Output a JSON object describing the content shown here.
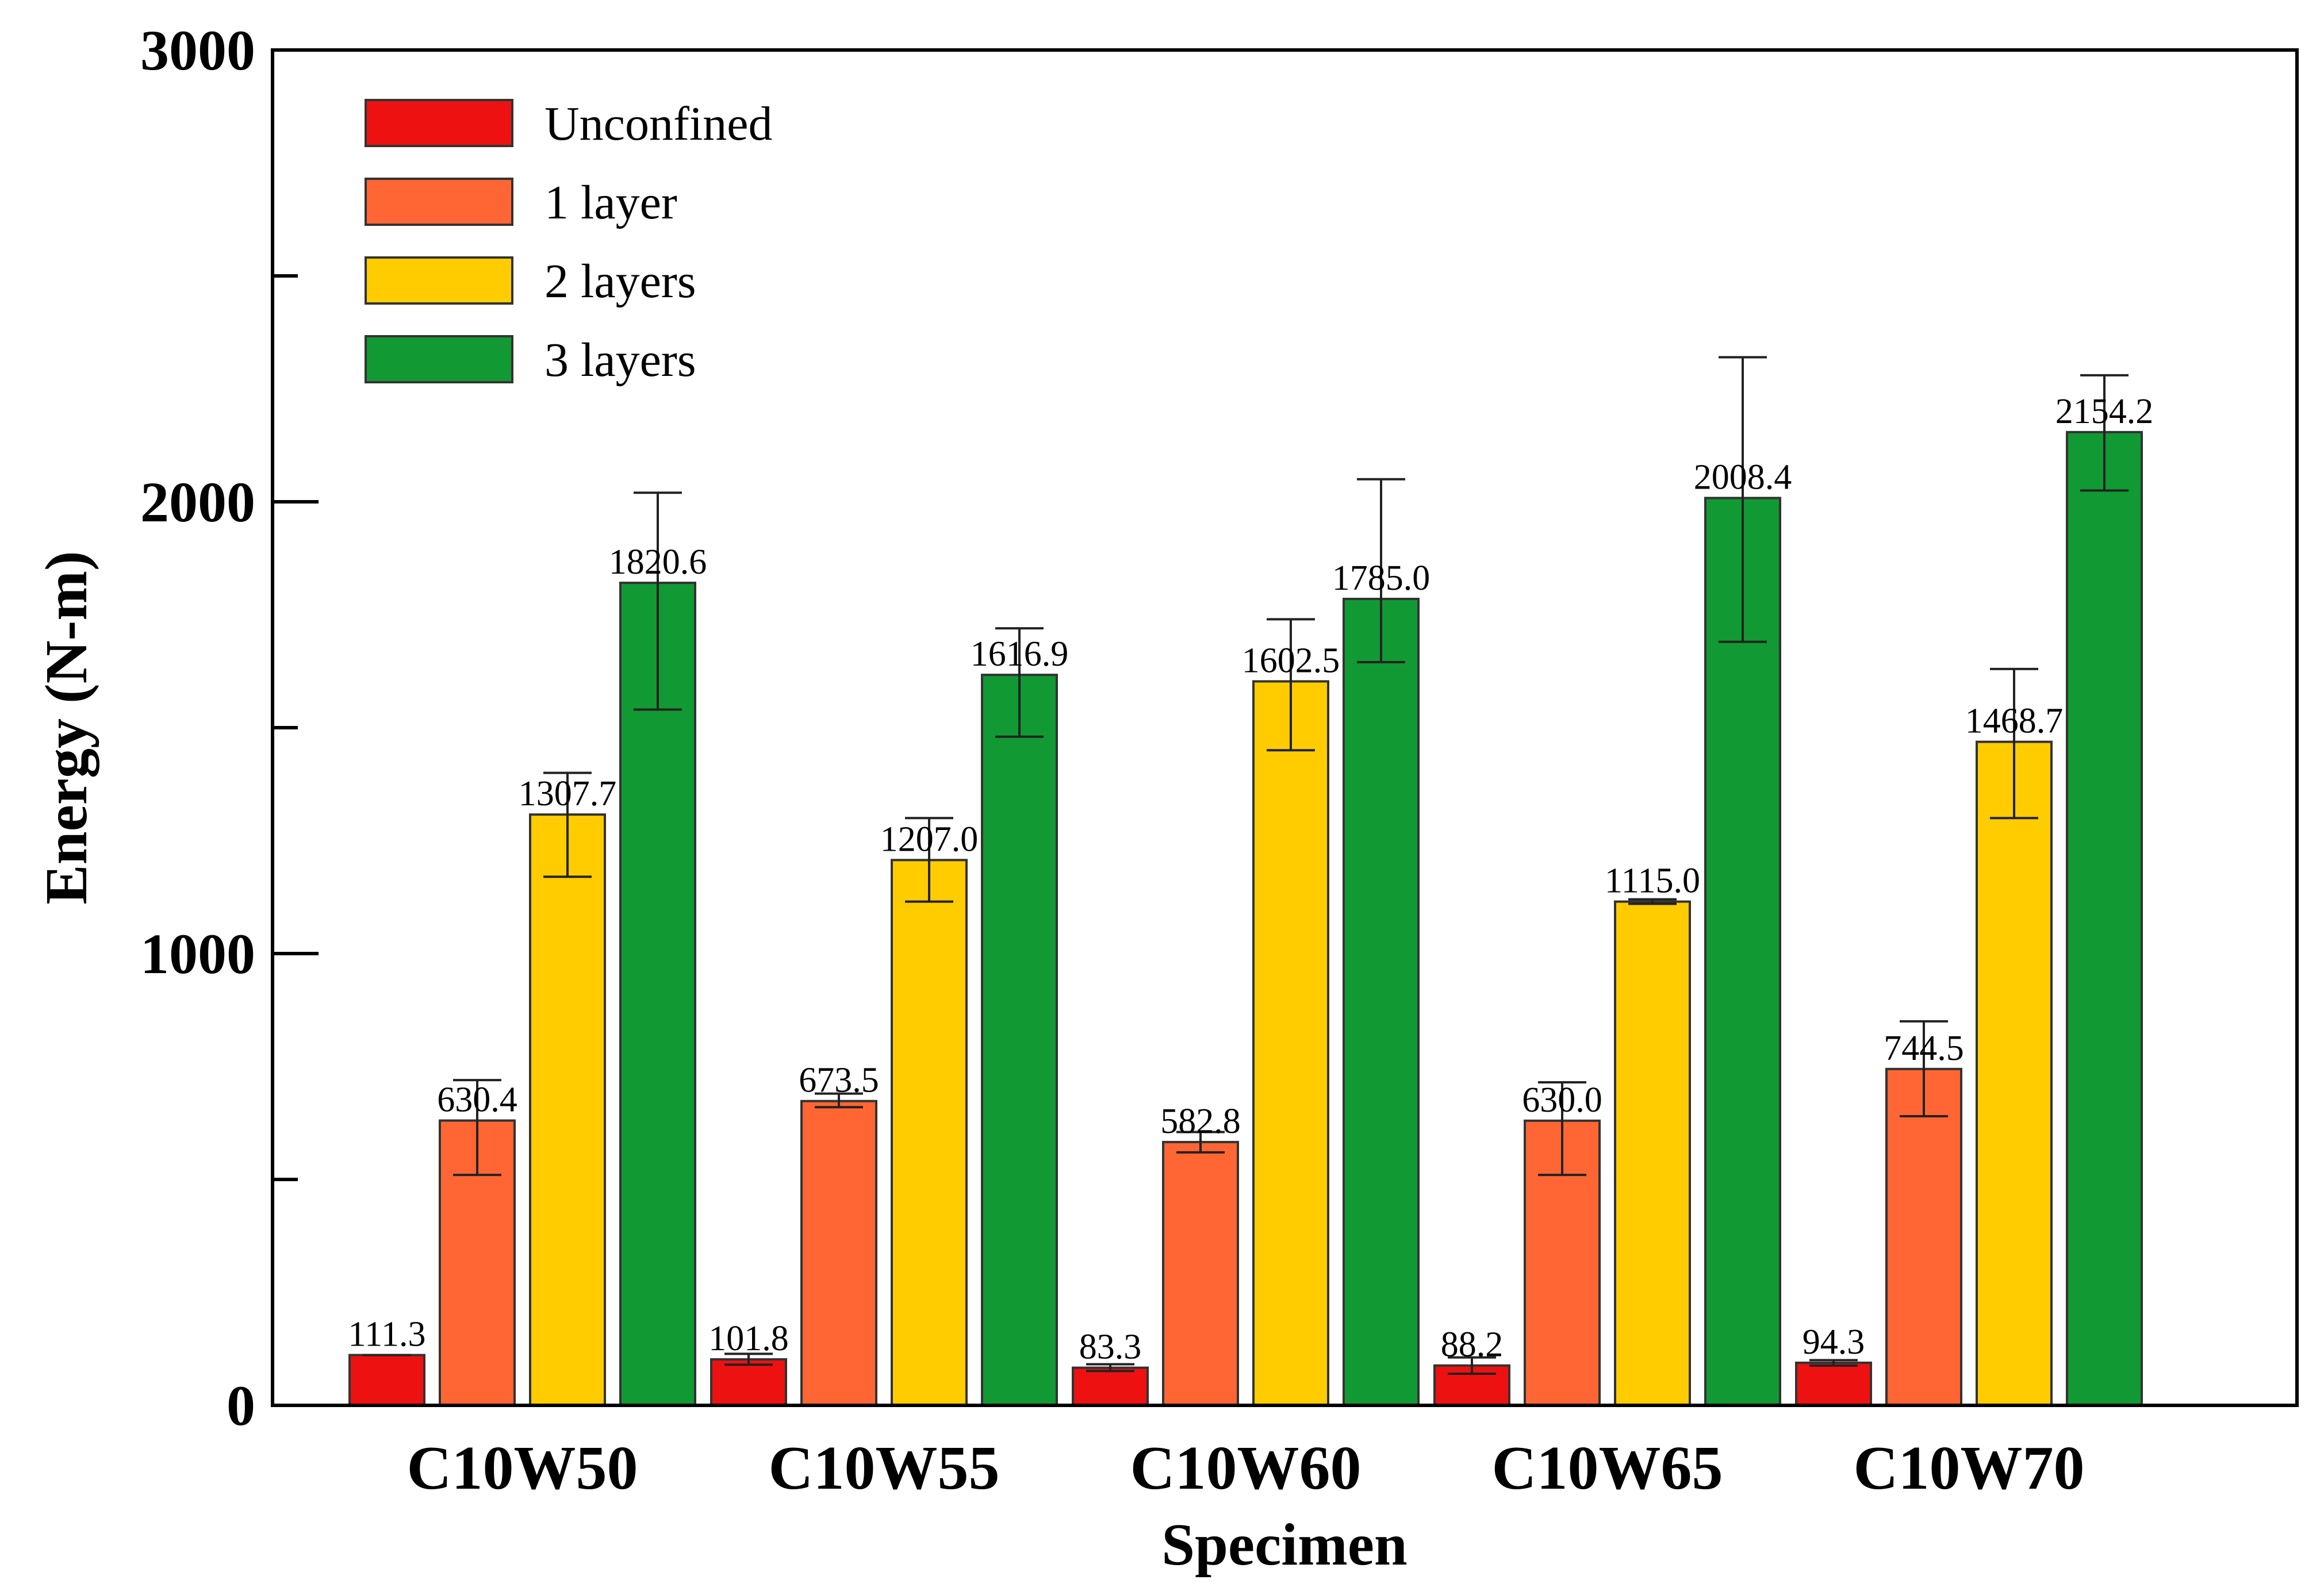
{
  "chart_data": {
    "type": "bar",
    "title": "",
    "xlabel": "Specimen",
    "ylabel": "Energy (N-m)",
    "ylim": [
      0,
      3000
    ],
    "yticks": [
      0,
      1000,
      2000,
      3000
    ],
    "ytick_labels": [
      "0",
      "1000",
      "2000",
      "3000"
    ],
    "yminor_ticks": [
      500,
      1500,
      2500
    ],
    "categories": [
      "C10W50",
      "C10W55",
      "C10W60",
      "C10W65",
      "C10W70"
    ],
    "legend_position": "top-left",
    "series": [
      {
        "name": "Unconfined",
        "color": "#ee1111",
        "values": [
          111.3,
          101.8,
          83.3,
          88.2,
          94.3
        ],
        "labels": [
          "111.3",
          "101.8",
          "83.3",
          "88.2",
          "94.3"
        ],
        "err_low": [
          111.3,
          90,
          76,
          70,
          88
        ],
        "err_high": [
          111.3,
          114,
          91,
          106,
          100
        ]
      },
      {
        "name": "1 layer",
        "color": "#ff6633",
        "values": [
          630.4,
          673.5,
          582.8,
          630.0,
          744.5
        ],
        "labels": [
          "630.4",
          "673.5",
          "582.8",
          "630.0",
          "744.5"
        ],
        "err_low": [
          510,
          660,
          560,
          510,
          640
        ],
        "err_high": [
          720,
          690,
          605,
          715,
          850
        ]
      },
      {
        "name": "2 layers",
        "color": "#ffcc00",
        "values": [
          1307.7,
          1207.0,
          1602.5,
          1115.0,
          1468.7
        ],
        "labels": [
          "1307.7",
          "1207.0",
          "1602.5",
          "1115.0",
          "1468.7"
        ],
        "err_low": [
          1170,
          1115,
          1450,
          1110,
          1300
        ],
        "err_high": [
          1400,
          1300,
          1740,
          1120,
          1630
        ]
      },
      {
        "name": "3 layers",
        "color": "#119933",
        "values": [
          1820.6,
          1616.9,
          1785.0,
          2008.4,
          2154.2
        ],
        "labels": [
          "1820.6",
          "1616.9",
          "1785.0",
          "2008.4",
          "2154.2"
        ],
        "err_low": [
          1540,
          1480,
          1645,
          1690,
          2025
        ],
        "err_high": [
          2020,
          1720,
          2050,
          2320,
          2280
        ]
      }
    ]
  }
}
